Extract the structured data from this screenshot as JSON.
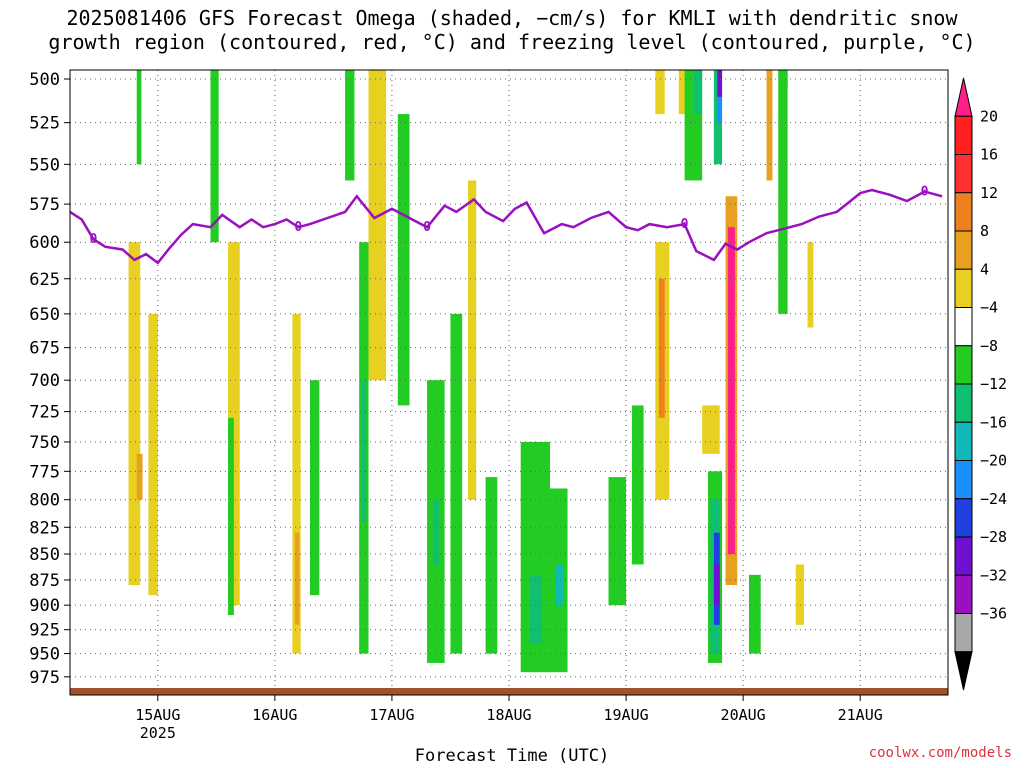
{
  "title_line1": "2025081406 GFS Forecast Omega (shaded, −cm/s) for KMLI with dendritic snow",
  "title_line2": "growth region (contoured, red, °C) and freezing level (contoured, purple, °C)",
  "credit": "coolwx.com/models",
  "chart_data": {
    "type": "heatmap",
    "title": "2025081406 GFS Forecast Omega (shaded, −cm/s) for KMLI with dendritic snow growth region (contoured, red, °C) and freezing level (contoured, purple, °C)",
    "xlabel": "Forecast Time (UTC)",
    "ylabel": "",
    "x_ticks": [
      "15AUG",
      "16AUG",
      "17AUG",
      "18AUG",
      "19AUG",
      "20AUG",
      "21AUG"
    ],
    "x_year": "2025",
    "xlim_days": [
      14.25,
      21.75
    ],
    "y_ticks": [
      500,
      525,
      550,
      575,
      600,
      625,
      650,
      675,
      700,
      725,
      750,
      775,
      800,
      825,
      850,
      875,
      900,
      925,
      950,
      975
    ],
    "ylim": [
      495,
      995
    ],
    "y_scale": "log",
    "grid": true,
    "colorbar": {
      "labels": [
        "20",
        "16",
        "12",
        "8",
        "4",
        "−4",
        "−8",
        "−12",
        "−16",
        "−20",
        "−24",
        "−28",
        "−32",
        "−36"
      ],
      "colors": [
        "#ff1f8a",
        "#ff2020",
        "#ff3030",
        "#ef8020",
        "#e8a020",
        "#e8d020",
        "#ffffff",
        "#22cc22",
        "#10c070",
        "#10b8b8",
        "#1a90ff",
        "#2040e0",
        "#7010d0",
        "#9a10c0",
        "#a8a8a8",
        "#000000"
      ]
    },
    "freezing_level": {
      "label": "0",
      "color": "#9a10c0",
      "x": [
        14.25,
        14.35,
        14.45,
        14.55,
        14.7,
        14.8,
        14.9,
        15.0,
        15.1,
        15.2,
        15.3,
        15.45,
        15.55,
        15.7,
        15.8,
        15.9,
        16.0,
        16.1,
        16.2,
        16.3,
        16.45,
        16.6,
        16.7,
        16.85,
        17.0,
        17.1,
        17.2,
        17.3,
        17.45,
        17.55,
        17.7,
        17.8,
        17.95,
        18.05,
        18.15,
        18.3,
        18.45,
        18.55,
        18.7,
        18.85,
        19.0,
        19.1,
        19.2,
        19.35,
        19.5,
        19.6,
        19.75,
        19.85,
        19.95,
        20.05,
        20.2,
        20.35,
        20.5,
        20.65,
        20.8,
        20.9,
        21.0,
        21.1,
        21.25,
        21.4,
        21.55,
        21.7
      ],
      "y": [
        580,
        585,
        598,
        603,
        605,
        612,
        608,
        614,
        604,
        595,
        588,
        590,
        582,
        590,
        585,
        590,
        588,
        585,
        590,
        588,
        584,
        580,
        570,
        584,
        578,
        582,
        586,
        590,
        576,
        580,
        572,
        580,
        586,
        578,
        574,
        594,
        588,
        590,
        584,
        580,
        590,
        592,
        588,
        590,
        588,
        606,
        612,
        601,
        605,
        600,
        594,
        591,
        588,
        583,
        580,
        574,
        568,
        566,
        569,
        573,
        567,
        570
      ]
    },
    "omega_cells": [
      {
        "x0": 14.75,
        "x1": 14.85,
        "p0": 600,
        "p1": 880,
        "color": "#e8d020"
      },
      {
        "x0": 14.82,
        "x1": 14.87,
        "p0": 760,
        "p1": 800,
        "color": "#e8a020"
      },
      {
        "x0": 14.92,
        "x1": 15.0,
        "p0": 650,
        "p1": 890,
        "color": "#e8d020"
      },
      {
        "x0": 14.82,
        "x1": 14.86,
        "p0": 495,
        "p1": 550,
        "color": "#22cc22"
      },
      {
        "x0": 15.45,
        "x1": 15.52,
        "p0": 495,
        "p1": 600,
        "color": "#22cc22"
      },
      {
        "x0": 15.6,
        "x1": 15.7,
        "p0": 600,
        "p1": 900,
        "color": "#e8d020"
      },
      {
        "x0": 15.6,
        "x1": 15.65,
        "p0": 730,
        "p1": 910,
        "color": "#22cc22"
      },
      {
        "x0": 16.15,
        "x1": 16.22,
        "p0": 650,
        "p1": 950,
        "color": "#e8d020"
      },
      {
        "x0": 16.17,
        "x1": 16.21,
        "p0": 830,
        "p1": 920,
        "color": "#e8a020"
      },
      {
        "x0": 16.3,
        "x1": 16.38,
        "p0": 700,
        "p1": 890,
        "color": "#22cc22"
      },
      {
        "x0": 16.6,
        "x1": 16.68,
        "p0": 495,
        "p1": 560,
        "color": "#22cc22"
      },
      {
        "x0": 16.72,
        "x1": 16.8,
        "p0": 600,
        "p1": 950,
        "color": "#22cc22"
      },
      {
        "x0": 16.74,
        "x1": 16.78,
        "p0": 700,
        "p1": 820,
        "color": "#10c070"
      },
      {
        "x0": 16.8,
        "x1": 16.95,
        "p0": 495,
        "p1": 700,
        "color": "#e8d020"
      },
      {
        "x0": 17.05,
        "x1": 17.15,
        "p0": 520,
        "p1": 720,
        "color": "#22cc22"
      },
      {
        "x0": 17.3,
        "x1": 17.45,
        "p0": 700,
        "p1": 960,
        "color": "#22cc22"
      },
      {
        "x0": 17.35,
        "x1": 17.4,
        "p0": 800,
        "p1": 860,
        "color": "#10c070"
      },
      {
        "x0": 17.5,
        "x1": 17.6,
        "p0": 650,
        "p1": 950,
        "color": "#22cc22"
      },
      {
        "x0": 17.65,
        "x1": 17.72,
        "p0": 560,
        "p1": 800,
        "color": "#e8d020"
      },
      {
        "x0": 17.8,
        "x1": 17.9,
        "p0": 780,
        "p1": 950,
        "color": "#22cc22"
      },
      {
        "x0": 18.1,
        "x1": 18.35,
        "p0": 750,
        "p1": 970,
        "color": "#22cc22"
      },
      {
        "x0": 18.18,
        "x1": 18.28,
        "p0": 870,
        "p1": 940,
        "color": "#10c070"
      },
      {
        "x0": 18.35,
        "x1": 18.5,
        "p0": 790,
        "p1": 970,
        "color": "#22cc22"
      },
      {
        "x0": 18.4,
        "x1": 18.46,
        "p0": 860,
        "p1": 900,
        "color": "#10b8b8"
      },
      {
        "x0": 18.85,
        "x1": 19.0,
        "p0": 780,
        "p1": 900,
        "color": "#22cc22"
      },
      {
        "x0": 19.05,
        "x1": 19.15,
        "p0": 720,
        "p1": 860,
        "color": "#22cc22"
      },
      {
        "x0": 19.25,
        "x1": 19.37,
        "p0": 600,
        "p1": 800,
        "color": "#e8d020"
      },
      {
        "x0": 19.28,
        "x1": 19.33,
        "p0": 625,
        "p1": 730,
        "color": "#ef8020"
      },
      {
        "x0": 19.25,
        "x1": 19.33,
        "p0": 495,
        "p1": 520,
        "color": "#e8d020"
      },
      {
        "x0": 19.45,
        "x1": 19.52,
        "p0": 495,
        "p1": 520,
        "color": "#e8d020"
      },
      {
        "x0": 19.5,
        "x1": 19.65,
        "p0": 495,
        "p1": 560,
        "color": "#22cc22"
      },
      {
        "x0": 19.58,
        "x1": 19.65,
        "p0": 495,
        "p1": 520,
        "color": "#10c070"
      },
      {
        "x0": 19.65,
        "x1": 19.8,
        "p0": 720,
        "p1": 760,
        "color": "#e8d020"
      },
      {
        "x0": 19.7,
        "x1": 19.82,
        "p0": 775,
        "p1": 960,
        "color": "#22cc22"
      },
      {
        "x0": 19.72,
        "x1": 19.8,
        "p0": 800,
        "p1": 950,
        "color": "#10c070"
      },
      {
        "x0": 19.75,
        "x1": 19.8,
        "p0": 830,
        "p1": 920,
        "color": "#2040e0"
      },
      {
        "x0": 19.75,
        "x1": 19.8,
        "p0": 860,
        "p1": 900,
        "color": "#7010d0"
      },
      {
        "x0": 19.75,
        "x1": 19.82,
        "p0": 495,
        "p1": 550,
        "color": "#10c070"
      },
      {
        "x0": 19.78,
        "x1": 19.82,
        "p0": 495,
        "p1": 525,
        "color": "#1a90ff"
      },
      {
        "x0": 19.78,
        "x1": 19.82,
        "p0": 495,
        "p1": 510,
        "color": "#7010d0"
      },
      {
        "x0": 19.85,
        "x1": 19.95,
        "p0": 570,
        "p1": 880,
        "color": "#e8a020"
      },
      {
        "x0": 19.87,
        "x1": 19.93,
        "p0": 590,
        "p1": 850,
        "color": "#ff1f8a"
      },
      {
        "x0": 20.05,
        "x1": 20.15,
        "p0": 870,
        "p1": 950,
        "color": "#22cc22"
      },
      {
        "x0": 20.2,
        "x1": 20.25,
        "p0": 495,
        "p1": 560,
        "color": "#e8a020"
      },
      {
        "x0": 20.3,
        "x1": 20.38,
        "p0": 495,
        "p1": 650,
        "color": "#22cc22"
      },
      {
        "x0": 20.55,
        "x1": 20.6,
        "p0": 600,
        "p1": 660,
        "color": "#e8d020"
      },
      {
        "x0": 20.45,
        "x1": 20.52,
        "p0": 860,
        "p1": 920,
        "color": "#e8d020"
      },
      {
        "x0": 20.32,
        "x1": 20.38,
        "p0": 495,
        "p1": 505,
        "color": "#22cc22"
      }
    ]
  }
}
